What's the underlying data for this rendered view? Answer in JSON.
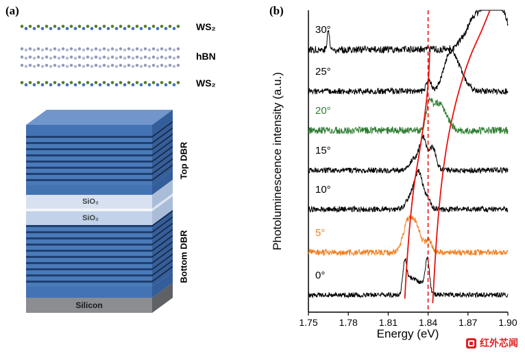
{
  "panel_a": {
    "label": "(a)",
    "layer_labels": {
      "ws2_top": "WS₂",
      "hbn": "hBN",
      "ws2_bottom": "WS₂",
      "top_dbr": "Top DBR",
      "sio2_top": "SiO₂",
      "sio2_bottom": "SiO₂",
      "bottom_dbr": "Bottom DBR",
      "silicon": "Silicon"
    },
    "colors": {
      "ws2_atom_a": "#567c20",
      "ws2_atom_b": "#4170b4",
      "hbn_atom_a": "#9298ba",
      "hbn_atom_b": "#b4b8d0",
      "cap_top": "#7096cb",
      "cap_blue": "#4473b4",
      "dbr_blue": "#4a7ab8",
      "dbr_navy": "#203f72",
      "dbr_side_blue": "#335e9a",
      "dbr_side_navy": "#152c52",
      "sio2_light": "#d7e1f0",
      "sio2_light2": "#c2d2e8",
      "sio2_side": "#a9bcd8",
      "silicon_gray": "#8b8d91",
      "silicon_side": "#5f6165"
    }
  },
  "panel_b": {
    "label": "(b)"
  },
  "chart_data": {
    "type": "line",
    "title": "",
    "xlabel": "Energy (eV)",
    "ylabel": "Photoluminescence intensity (a.u.)",
    "xlim": [
      1.75,
      1.9
    ],
    "xticks": [
      "1.75",
      "1.78",
      "1.81",
      "1.84",
      "1.87",
      "1.90"
    ],
    "grid": false,
    "legend": false,
    "background": "#ffffff",
    "exciton_line_eV": 1.84,
    "dashed_line_color": "#e8100c",
    "series": [
      {
        "name": "30°",
        "angle_deg": 30,
        "color": "#000000",
        "base": 0.87,
        "noise": 0.012,
        "peaks": [
          {
            "c": 1.884,
            "h": 0.115,
            "w": 0.009
          },
          {
            "c": 1.894,
            "h": 0.09,
            "w": 0.007
          },
          {
            "c": 1.872,
            "h": 0.045,
            "w": 0.006
          },
          {
            "c": 1.765,
            "h": 0.065,
            "w": 0.0008
          }
        ]
      },
      {
        "name": "25°",
        "angle_deg": 25,
        "color": "#000000",
        "base": 0.732,
        "noise": 0.01,
        "peaks": [
          {
            "c": 1.8565,
            "h": 0.1,
            "w": 0.005
          },
          {
            "c": 1.8625,
            "h": 0.05,
            "w": 0.006
          },
          {
            "c": 1.8405,
            "h": 0.035,
            "w": 0.0018
          }
        ]
      },
      {
        "name": "20°",
        "angle_deg": 20,
        "color": "#2e7d32",
        "base": 0.602,
        "noise": 0.012,
        "peaks": [
          {
            "c": 1.8405,
            "h": 0.08,
            "w": 0.002
          },
          {
            "c": 1.8505,
            "h": 0.07,
            "w": 0.0045
          },
          {
            "c": 1.845,
            "h": 0.05,
            "w": 0.003
          }
        ]
      },
      {
        "name": "15°",
        "angle_deg": 15,
        "color": "#000000",
        "base": 0.47,
        "noise": 0.009,
        "peaks": [
          {
            "c": 1.8365,
            "h": 0.095,
            "w": 0.0025
          },
          {
            "c": 1.8435,
            "h": 0.075,
            "w": 0.0025
          },
          {
            "c": 1.8305,
            "h": 0.04,
            "w": 0.004
          }
        ]
      },
      {
        "name": "10°",
        "angle_deg": 10,
        "color": "#000000",
        "base": 0.341,
        "noise": 0.009,
        "peaks": [
          {
            "c": 1.8335,
            "h": 0.1,
            "w": 0.003
          },
          {
            "c": 1.8285,
            "h": 0.05,
            "w": 0.004
          },
          {
            "c": 1.84,
            "h": 0.03,
            "w": 0.002
          }
        ]
      },
      {
        "name": "5°",
        "angle_deg": 5,
        "color": "#f07f1f",
        "base": 0.198,
        "noise": 0.01,
        "peaks": [
          {
            "c": 1.8295,
            "h": 0.105,
            "w": 0.0045
          },
          {
            "c": 1.8235,
            "h": 0.055,
            "w": 0.003
          },
          {
            "c": 1.8405,
            "h": 0.04,
            "w": 0.002
          }
        ]
      },
      {
        "name": "0°",
        "angle_deg": 0,
        "color": "#000000",
        "base": 0.057,
        "noise": 0.008,
        "peaks": [
          {
            "c": 1.8225,
            "h": 0.1,
            "w": 0.0015
          },
          {
            "c": 1.827,
            "h": 0.05,
            "w": 0.003
          },
          {
            "c": 1.8395,
            "h": 0.105,
            "w": 0.0015
          },
          {
            "c": 1.8345,
            "h": 0.04,
            "w": 0.004
          }
        ]
      }
    ],
    "polariton_branches": {
      "color": "#e8100c",
      "lower": [
        [
          1.8225,
          0.045
        ],
        [
          1.824,
          0.16
        ],
        [
          1.8265,
          0.3
        ],
        [
          1.8295,
          0.42
        ],
        [
          1.8335,
          0.53
        ],
        [
          1.8365,
          0.62
        ],
        [
          1.839,
          0.71
        ],
        [
          1.8405,
          0.79
        ],
        [
          1.8412,
          0.86
        ]
      ],
      "upper": [
        [
          1.8435,
          0.03
        ],
        [
          1.845,
          0.15
        ],
        [
          1.847,
          0.28
        ],
        [
          1.85,
          0.42
        ],
        [
          1.854,
          0.55
        ],
        [
          1.859,
          0.66
        ],
        [
          1.865,
          0.76
        ],
        [
          1.872,
          0.85
        ],
        [
          1.88,
          0.93
        ],
        [
          1.8865,
          1.0
        ]
      ]
    }
  },
  "watermark": {
    "text": "红外芯闻",
    "color": "#e01f1f"
  }
}
